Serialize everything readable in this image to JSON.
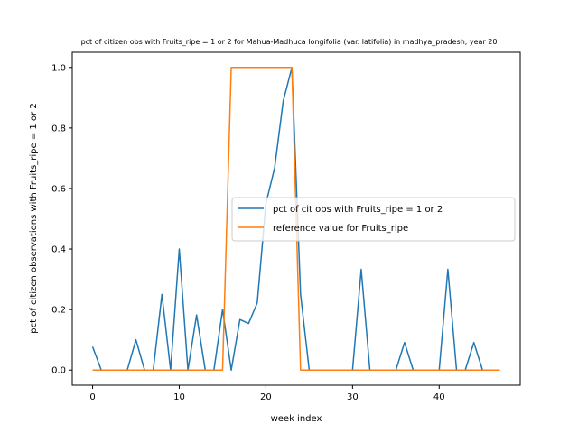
{
  "chart_data": {
    "type": "line",
    "title": "pct of citizen obs with Fruits_ripe = 1 or 2 for Mahua-Madhuca longifolia (var. latifolia) in madhya_pradesh, year 20",
    "xlabel": "week index",
    "ylabel": "pct of citizen observations with Fruits_ripe = 1 or 2",
    "xlim": [
      -2.35,
      49.35
    ],
    "ylim": [
      -0.05,
      1.05
    ],
    "xticks": [
      0,
      10,
      20,
      30,
      40
    ],
    "yticks": [
      0.0,
      0.2,
      0.4,
      0.6,
      0.8,
      1.0
    ],
    "grid": false,
    "legend_position": "center-right",
    "series": [
      {
        "name": "pct of cit obs with Fruits_ripe = 1 or 2",
        "color": "#1f77b4",
        "x": [
          0,
          1,
          2,
          3,
          4,
          5,
          6,
          7,
          8,
          9,
          10,
          11,
          12,
          13,
          14,
          15,
          16,
          17,
          18,
          19,
          20,
          21,
          22,
          23,
          24,
          25,
          26,
          27,
          28,
          29,
          30,
          31,
          32,
          33,
          34,
          35,
          36,
          37,
          38,
          39,
          40,
          41,
          42,
          43,
          44,
          45,
          46,
          47
        ],
        "values": [
          0.077,
          0,
          0,
          0,
          0,
          0.1,
          0,
          0,
          0.25,
          0,
          0.4,
          0,
          0.182,
          0,
          0,
          0.2,
          0,
          0.167,
          0.154,
          0.222,
          0.55,
          0.667,
          0.889,
          1.0,
          0.25,
          0,
          0,
          0,
          0,
          0,
          0,
          0.333,
          0,
          0,
          0,
          0,
          0.091,
          0,
          0,
          0,
          0,
          0.333,
          0,
          0,
          0.091,
          0,
          0,
          0
        ]
      },
      {
        "name": "reference value for Fruits_ripe",
        "color": "#ff7f0e",
        "x": [
          0,
          1,
          2,
          3,
          4,
          5,
          6,
          7,
          8,
          9,
          10,
          11,
          12,
          13,
          14,
          15,
          16,
          17,
          18,
          19,
          20,
          21,
          22,
          23,
          24,
          25,
          26,
          27,
          28,
          29,
          30,
          31,
          32,
          33,
          34,
          35,
          36,
          37,
          38,
          39,
          40,
          41,
          42,
          43,
          44,
          45,
          46,
          47
        ],
        "values": [
          0,
          0,
          0,
          0,
          0,
          0,
          0,
          0,
          0,
          0,
          0,
          0,
          0,
          0,
          0,
          0,
          1,
          1,
          1,
          1,
          1,
          1,
          1,
          1,
          0,
          0,
          0,
          0,
          0,
          0,
          0,
          0,
          0,
          0,
          0,
          0,
          0,
          0,
          0,
          0,
          0,
          0,
          0,
          0,
          0,
          0,
          0,
          0
        ]
      }
    ]
  }
}
